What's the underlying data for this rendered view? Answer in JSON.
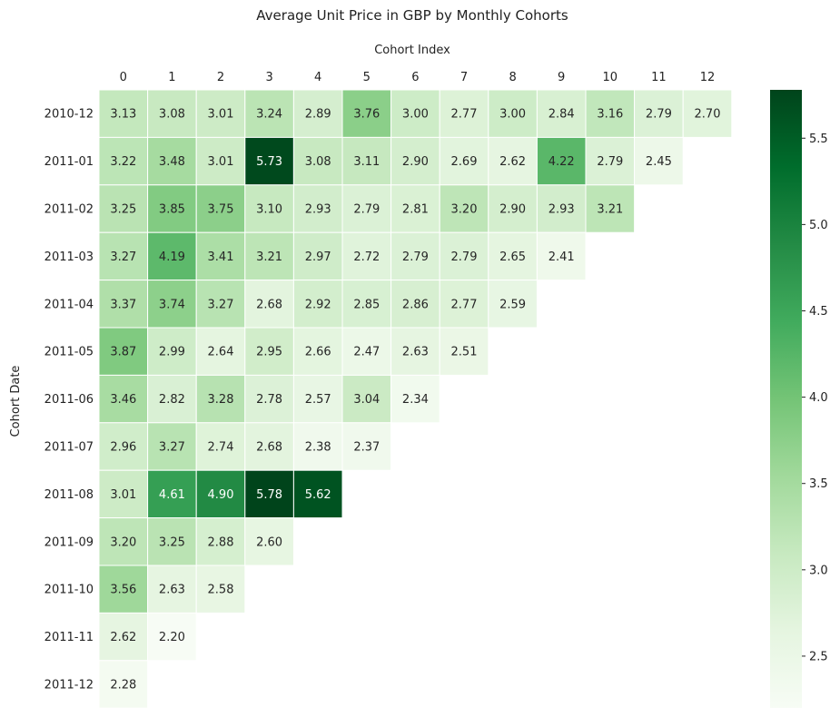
{
  "chart_data": {
    "type": "heatmap",
    "title": "Average Unit Price in GBP by Monthly Cohorts",
    "xlabel": "Cohort Index",
    "ylabel": "Cohort Date",
    "x_labels": [
      "0",
      "1",
      "2",
      "3",
      "4",
      "5",
      "6",
      "7",
      "8",
      "9",
      "10",
      "11",
      "12"
    ],
    "y_labels": [
      "2010-12",
      "2011-01",
      "2011-02",
      "2011-03",
      "2011-04",
      "2011-05",
      "2011-06",
      "2011-07",
      "2011-08",
      "2011-09",
      "2011-10",
      "2011-11",
      "2011-12"
    ],
    "values": [
      [
        3.13,
        3.08,
        3.01,
        3.24,
        2.89,
        3.76,
        3.0,
        2.77,
        3.0,
        2.84,
        3.16,
        2.79,
        2.7
      ],
      [
        3.22,
        3.48,
        3.01,
        5.73,
        3.08,
        3.11,
        2.9,
        2.69,
        2.62,
        4.22,
        2.79,
        2.45
      ],
      [
        3.25,
        3.85,
        3.75,
        3.1,
        2.93,
        2.79,
        2.81,
        3.2,
        2.9,
        2.93,
        3.21
      ],
      [
        3.27,
        4.19,
        3.41,
        3.21,
        2.97,
        2.72,
        2.79,
        2.79,
        2.65,
        2.41
      ],
      [
        3.37,
        3.74,
        3.27,
        2.68,
        2.92,
        2.85,
        2.86,
        2.77,
        2.59
      ],
      [
        3.87,
        2.99,
        2.64,
        2.95,
        2.66,
        2.47,
        2.63,
        2.51
      ],
      [
        3.46,
        2.82,
        3.28,
        2.78,
        2.57,
        3.04,
        2.34
      ],
      [
        2.96,
        3.27,
        2.74,
        2.68,
        2.38,
        2.37
      ],
      [
        3.01,
        4.61,
        4.9,
        5.78,
        5.62
      ],
      [
        3.2,
        3.25,
        2.88,
        2.6
      ],
      [
        3.56,
        2.63,
        2.58
      ],
      [
        2.62,
        2.2
      ],
      [
        2.28
      ]
    ],
    "value_labels": [
      [
        "3.13",
        "3.08",
        "3.01",
        "3.24",
        "2.89",
        "3.76",
        "3.00",
        "2.77",
        "3.00",
        "2.84",
        "3.16",
        "2.79",
        "2.70"
      ],
      [
        "3.22",
        "3.48",
        "3.01",
        "5.73",
        "3.08",
        "3.11",
        "2.90",
        "2.69",
        "2.62",
        "4.22",
        "2.79",
        "2.45"
      ],
      [
        "3.25",
        "3.85",
        "3.75",
        "3.10",
        "2.93",
        "2.79",
        "2.81",
        "3.20",
        "2.90",
        "2.93",
        "3.21"
      ],
      [
        "3.27",
        "4.19",
        "3.41",
        "3.21",
        "2.97",
        "2.72",
        "2.79",
        "2.79",
        "2.65",
        "2.41"
      ],
      [
        "3.37",
        "3.74",
        "3.27",
        "2.68",
        "2.92",
        "2.85",
        "2.86",
        "2.77",
        "2.59"
      ],
      [
        "3.87",
        "2.99",
        "2.64",
        "2.95",
        "2.66",
        "2.47",
        "2.63",
        "2.51"
      ],
      [
        "3.46",
        "2.82",
        "3.28",
        "2.78",
        "2.57",
        "3.04",
        "2.34"
      ],
      [
        "2.96",
        "3.27",
        "2.74",
        "2.68",
        "2.38",
        "2.37"
      ],
      [
        "3.01",
        "4.61",
        "4.90",
        "5.78",
        "5.62"
      ],
      [
        "3.20",
        "3.25",
        "2.88",
        "2.60"
      ],
      [
        "3.56",
        "2.63",
        "2.58"
      ],
      [
        "2.62",
        "2.20"
      ],
      [
        "2.28"
      ]
    ],
    "colorbar": {
      "vmin": 2.2,
      "vmax": 5.78,
      "ticks": [
        2.5,
        3.0,
        3.5,
        4.0,
        4.5,
        5.0,
        5.5
      ],
      "tick_labels": [
        "2.5",
        "3.0",
        "3.5",
        "4.0",
        "4.5",
        "5.0",
        "5.5"
      ],
      "colormap": "Greens",
      "colors": [
        "#f7fcf5",
        "#e5f5e0",
        "#c7e9c0",
        "#a1d99b",
        "#74c476",
        "#41ab5d",
        "#238b45",
        "#006d2c",
        "#00441b"
      ]
    },
    "x_axis_position": "top",
    "grid": false,
    "colors": {
      "cell_border": "#ffffff",
      "text_dark": "#262626",
      "text_light": "#ffffff"
    }
  }
}
